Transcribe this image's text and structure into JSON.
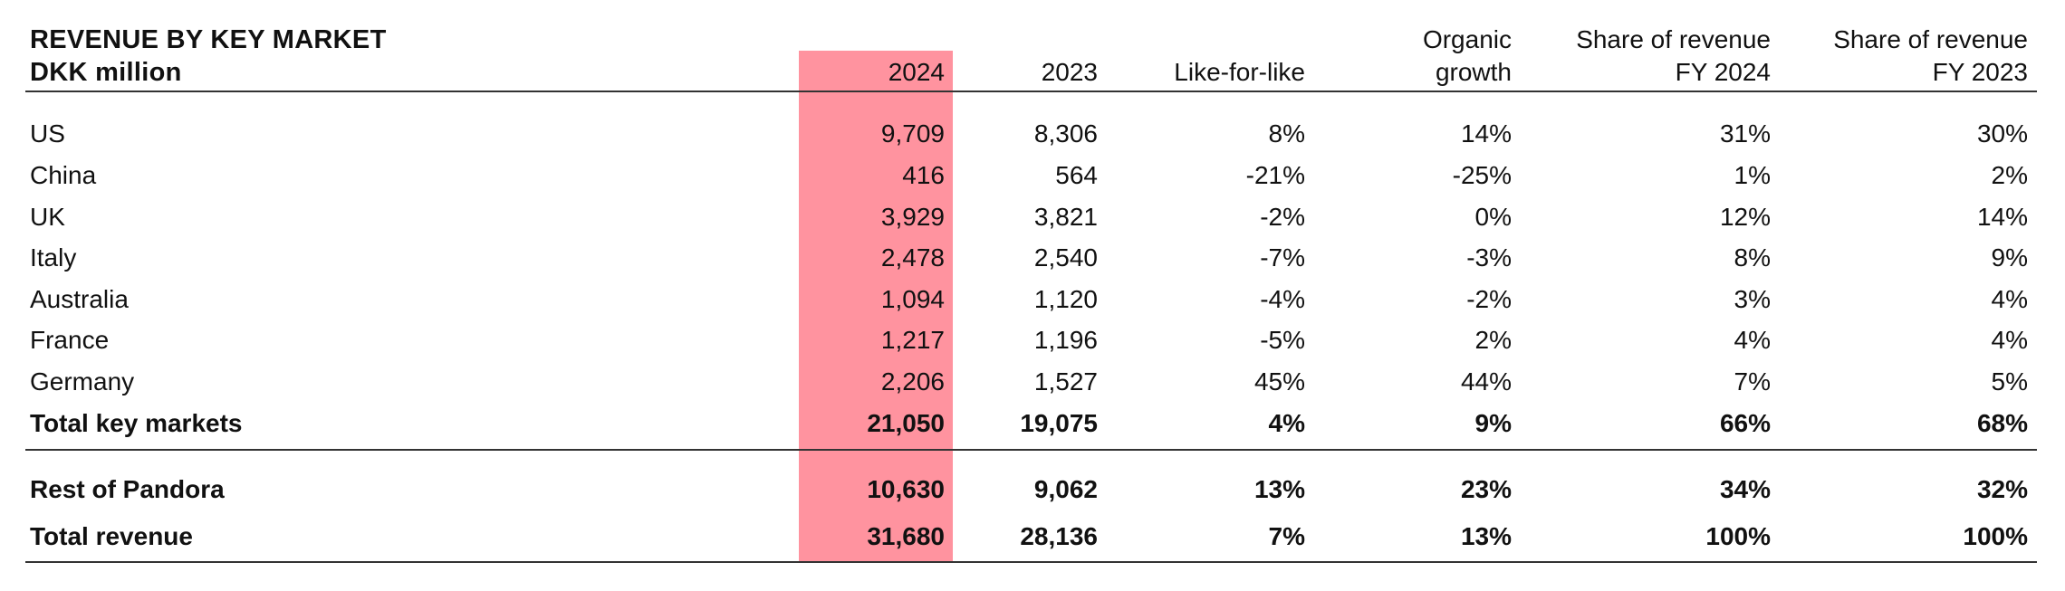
{
  "table": {
    "title": "REVENUE BY KEY MARKET",
    "unit": "DKK million",
    "highlight_color": "#ff939f",
    "headers": [
      {
        "line1": "",
        "line2": "2024"
      },
      {
        "line1": "",
        "line2": "2023"
      },
      {
        "line1": "",
        "line2": "Like-for-like"
      },
      {
        "line1": "Organic",
        "line2": "growth"
      },
      {
        "line1": "Share of revenue",
        "line2": "FY 2024"
      },
      {
        "line1": "Share of revenue",
        "line2": "FY 2023"
      }
    ],
    "rows": [
      {
        "label": "US",
        "values": [
          "9,709",
          "8,306",
          "8%",
          "14%",
          "31%",
          "30%"
        ]
      },
      {
        "label": "China",
        "values": [
          "416",
          "564",
          "-21%",
          "-25%",
          "1%",
          "2%"
        ]
      },
      {
        "label": "UK",
        "values": [
          "3,929",
          "3,821",
          "-2%",
          "0%",
          "12%",
          "14%"
        ]
      },
      {
        "label": "Italy",
        "values": [
          "2,478",
          "2,540",
          "-7%",
          "-3%",
          "8%",
          "9%"
        ]
      },
      {
        "label": "Australia",
        "values": [
          "1,094",
          "1,120",
          "-4%",
          "-2%",
          "3%",
          "4%"
        ]
      },
      {
        "label": "France",
        "values": [
          "1,217",
          "1,196",
          "-5%",
          "2%",
          "4%",
          "4%"
        ]
      },
      {
        "label": "Germany",
        "values": [
          "2,206",
          "1,527",
          "45%",
          "44%",
          "7%",
          "5%"
        ]
      },
      {
        "label": "Total key markets",
        "values": [
          "21,050",
          "19,075",
          "4%",
          "9%",
          "66%",
          "68%"
        ]
      },
      {
        "label": "Rest of Pandora",
        "values": [
          "10,630",
          "9,062",
          "13%",
          "23%",
          "34%",
          "32%"
        ]
      },
      {
        "label": "Total revenue",
        "values": [
          "31,680",
          "28,136",
          "7%",
          "13%",
          "100%",
          "100%"
        ]
      }
    ]
  }
}
